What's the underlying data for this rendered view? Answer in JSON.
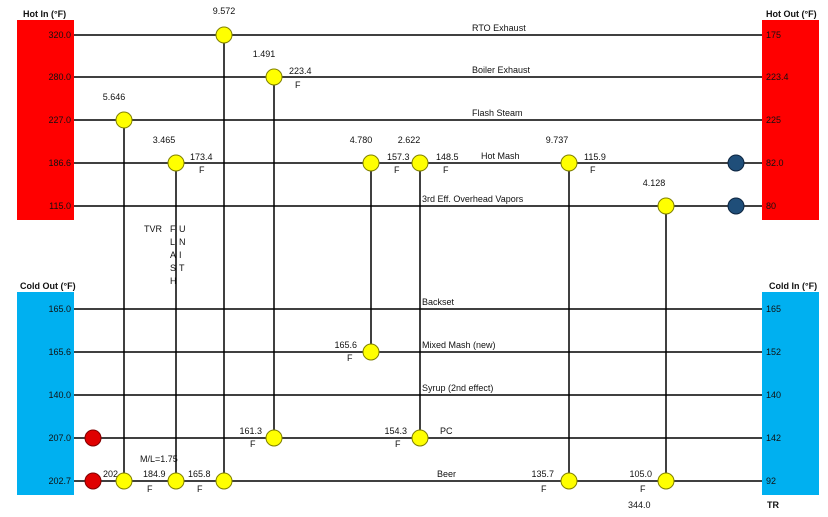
{
  "headers": {
    "hot_in": "Hot In (°F)",
    "hot_out": "Hot Out (°F)",
    "cold_out": "Cold Out (°F)",
    "cold_in": "Cold In (°F)",
    "tr": "TR"
  },
  "colors": {
    "hot": "#ff0000",
    "cold": "#00b0f0",
    "exchanger": "#ffff00",
    "heater": "#e00000",
    "cooler": "#1f4e79"
  },
  "hot_streams": [
    {
      "name": "RTO Exhaust",
      "t_in": "320.0",
      "t_out": "175"
    },
    {
      "name": "Boiler Exhaust",
      "t_in": "280.0",
      "t_out": "223.4"
    },
    {
      "name": "Flash Steam",
      "t_in": "227.0",
      "t_out": "225"
    },
    {
      "name": "Hot Mash",
      "t_in": "186.6",
      "t_out": "82.0"
    },
    {
      "name": "3rd Eff. Overhead Vapors",
      "t_in": "115.0",
      "t_out": "80"
    }
  ],
  "cold_streams": [
    {
      "name": "Backset",
      "t_out": "165.0",
      "t_in": "165"
    },
    {
      "name": "Mixed Mash (new)",
      "t_out": "165.6",
      "t_in": "152"
    },
    {
      "name": "Syrup (2nd effect)",
      "t_out": "140.0",
      "t_in": "140"
    },
    {
      "name": "PC",
      "t_out": "207.0",
      "t_in": "142"
    },
    {
      "name": "Beer",
      "t_out": "202.7",
      "t_in": "92"
    }
  ],
  "duties": [
    "9.572",
    "1.491",
    "5.646",
    "3.465",
    "4.780",
    "2.622",
    "9.737",
    "4.128"
  ],
  "temp_labels": [
    "223.4",
    "173.4",
    "157.3",
    "148.5",
    "115.9",
    "165.6",
    "161.3",
    "154.3",
    "202",
    "184.9",
    "165.8",
    "135.7",
    "105.0"
  ],
  "f_label": "F",
  "ml_label": "M/L=1.75",
  "tvr_label": "TVR",
  "flash_label": [
    "F",
    "L",
    "A",
    "S",
    "H"
  ],
  "unit_label": [
    "U",
    "N",
    "I",
    "T"
  ],
  "tr_value": "344.0"
}
